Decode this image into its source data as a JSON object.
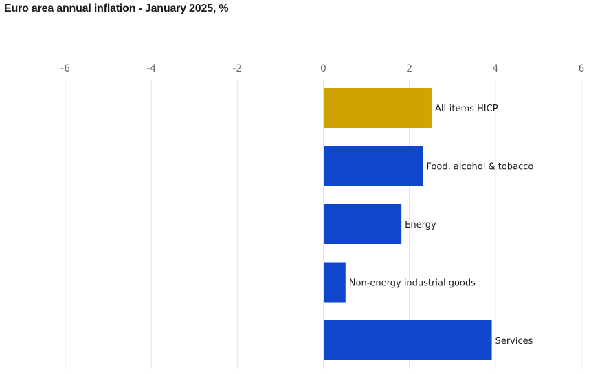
{
  "chart_data": {
    "type": "bar",
    "orientation": "horizontal",
    "title": "Euro area annual inflation - January 2025, %",
    "xlim": [
      -6,
      6
    ],
    "xticks": [
      -6,
      -4,
      -2,
      0,
      2,
      4,
      6
    ],
    "grid": true,
    "categories": [
      "All-items HICP",
      "Food, alcohol & tobacco",
      "Energy",
      "Non-energy industrial goods",
      "Services"
    ],
    "values": [
      2.5,
      2.3,
      1.8,
      0.5,
      3.9
    ],
    "colors": [
      "#d0a300",
      "#0e47cb",
      "#0e47cb",
      "#0e47cb",
      "#0e47cb"
    ]
  }
}
